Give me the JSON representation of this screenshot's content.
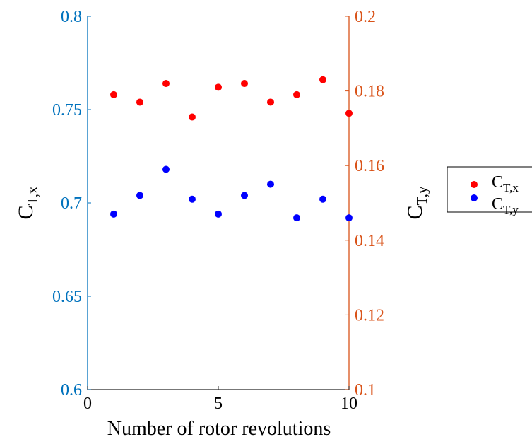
{
  "chart_data": {
    "type": "scatter",
    "title": "",
    "xlabel": "Number of rotor revolutions",
    "xlim": [
      0,
      10
    ],
    "xticks": [
      0,
      5,
      10
    ],
    "y_left": {
      "label_main": "C",
      "label_sub": "T,x",
      "lim": [
        0.6,
        0.8
      ],
      "ticks": [
        "0.6",
        "0.65",
        "0.7",
        "0.75",
        "0.8"
      ],
      "color": "#0072BD"
    },
    "y_right": {
      "label_main": "C",
      "label_sub": "T,y",
      "lim": [
        0.1,
        0.2
      ],
      "ticks": [
        "0.1",
        "0.12",
        "0.14",
        "0.16",
        "0.18",
        "0.2"
      ],
      "color": "#D95319"
    },
    "series": [
      {
        "name_main": "C",
        "name_sub": "T,x",
        "color": "#FF0000",
        "axis": "right",
        "x": [
          1,
          2,
          3,
          4,
          5,
          6,
          7,
          8,
          9,
          10
        ],
        "y": [
          0.179,
          0.177,
          0.182,
          0.173,
          0.181,
          0.182,
          0.177,
          0.179,
          0.183,
          0.174
        ]
      },
      {
        "name_main": "C",
        "name_sub": "T,y",
        "color": "#0000FF",
        "axis": "right",
        "x": [
          1,
          2,
          3,
          4,
          5,
          6,
          7,
          8,
          9,
          10
        ],
        "y": [
          0.147,
          0.152,
          0.159,
          0.151,
          0.147,
          0.152,
          0.155,
          0.146,
          0.151,
          0.146
        ]
      }
    ],
    "grid": false,
    "legend_position": "right"
  }
}
